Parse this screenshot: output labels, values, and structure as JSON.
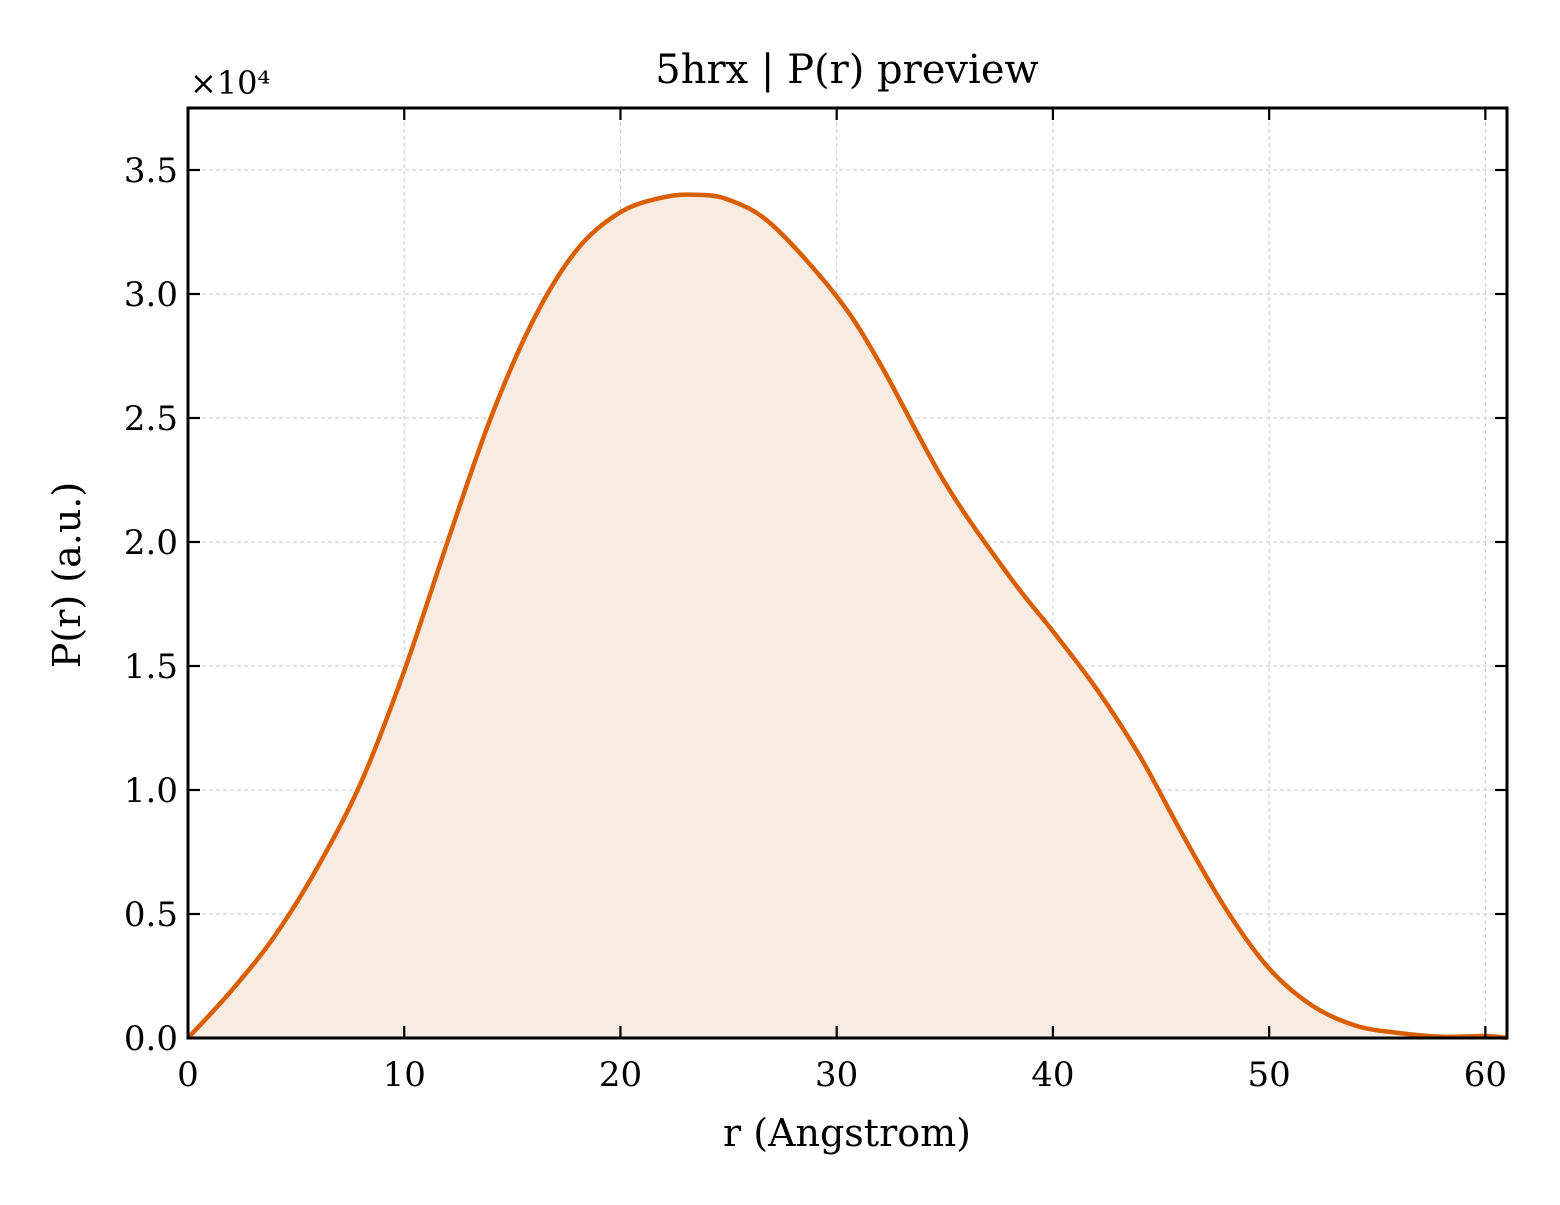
{
  "chart_data": {
    "type": "area",
    "title": "5hrx | P(r) preview",
    "xlabel": "r (Angstrom)",
    "ylabel": "P(r) (a.u.)",
    "y_offset_label": "×10⁴",
    "y_scale_factor": 10000,
    "xlim": [
      0,
      61
    ],
    "ylim": [
      0,
      37500
    ],
    "x_ticks": [
      0,
      10,
      20,
      30,
      40,
      50,
      60
    ],
    "x_tick_labels": [
      "0",
      "10",
      "20",
      "30",
      "40",
      "50",
      "60"
    ],
    "y_ticks": [
      0,
      5000,
      10000,
      15000,
      20000,
      25000,
      30000,
      35000
    ],
    "y_tick_labels": [
      "0.0",
      "0.5",
      "1.0",
      "1.5",
      "2.0",
      "2.5",
      "3.0",
      "3.5"
    ],
    "grid": true,
    "legend": "none",
    "series": [
      {
        "color": "#d95f02",
        "fill_color": "#f8ebe1",
        "x": [
          0,
          2,
          4,
          6,
          8,
          10,
          12,
          14,
          16,
          18,
          20,
          22,
          23.5,
          25,
          27,
          30,
          32,
          35,
          38,
          40,
          42,
          44,
          46,
          48,
          50,
          52,
          54,
          56,
          58,
          60,
          61
        ],
        "y": [
          0,
          1900,
          4100,
          6900,
          10300,
          14800,
          20000,
          25000,
          29000,
          31800,
          33300,
          33900,
          34000,
          33800,
          32800,
          29900,
          27200,
          22400,
          18600,
          16400,
          14100,
          11400,
          8200,
          5200,
          2800,
          1300,
          500,
          200,
          50,
          80,
          0
        ]
      }
    ]
  }
}
